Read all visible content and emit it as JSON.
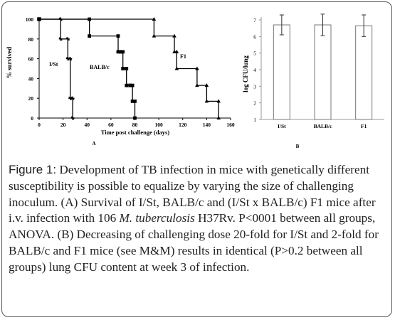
{
  "chart_data": [
    {
      "type": "line",
      "panel_label": "A",
      "ylabel": "% survived",
      "xlabel": "Time post challenge (days)",
      "xlim": [
        0,
        160
      ],
      "ylim": [
        0,
        100
      ],
      "xticks": [
        "0",
        "20",
        "40",
        "60",
        "80",
        "100",
        "120",
        "140",
        "160"
      ],
      "yticks": [
        "0",
        "20",
        "40",
        "60",
        "80",
        "100"
      ],
      "series": [
        {
          "name": "I/St",
          "x": [
            0,
            18,
            18,
            24,
            24,
            26,
            26,
            28,
            28
          ],
          "y": [
            100,
            100,
            80,
            80,
            60,
            60,
            20,
            20,
            0
          ]
        },
        {
          "name": "BALB/c",
          "x": [
            0,
            42,
            42,
            66,
            66,
            68,
            68,
            70,
            70,
            73,
            73,
            76,
            76,
            78,
            78,
            80,
            80
          ],
          "y": [
            100,
            100,
            83,
            83,
            67,
            67,
            67,
            67,
            50,
            50,
            33,
            33,
            33,
            33,
            17,
            17,
            0
          ]
        },
        {
          "name": "F1",
          "x": [
            0,
            96,
            96,
            113,
            113,
            115,
            115,
            132,
            132,
            140,
            140,
            150,
            150
          ],
          "y": [
            100,
            100,
            83,
            83,
            67,
            67,
            50,
            50,
            33,
            33,
            17,
            17,
            0
          ]
        }
      ],
      "annotations": [
        "I/St",
        "BALB/c",
        "F1"
      ]
    },
    {
      "type": "bar",
      "panel_label": "B",
      "ylabel": "log CFU/lung",
      "categories": [
        "I/St",
        "BALB/c",
        "F1"
      ],
      "values": [
        6.7,
        6.7,
        6.65
      ],
      "errors": [
        0.6,
        0.65,
        0.65
      ],
      "ylim": [
        1,
        7
      ],
      "yticks": [
        "1",
        "2",
        "3",
        "4",
        "5",
        "6",
        "7"
      ]
    }
  ],
  "caption": {
    "label": "Figure 1:",
    "text_1": " Development of TB infection in mice with genetically different susceptibility is possible to equalize by varying the size of challenging inoculum. (A) Survival of I/St, BALB/c and (I/St x BALB/c) F1 mice after i.v. infection with 106 ",
    "italic": "M. tuberculosis",
    "text_2": " H37Rv. P<0001 between all groups, ANOVA. (B) Decreasing of challenging dose 20-fold for I/St and 2-fold for BALB/c and F1 mice (see M&M) results in identical (P>0.2 between all groups) lung CFU content at week 3 of infection."
  }
}
